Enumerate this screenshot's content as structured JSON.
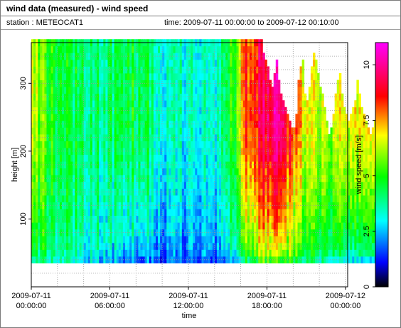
{
  "window": {
    "title": "wind data (measured) - wind speed",
    "station_label": "station : METEOCAT1",
    "time_label": "time: 2009-07-11 00:00:00 to 2009-07-12 00:10:00"
  },
  "chart_data": {
    "type": "heatmap",
    "title": "wind data (measured) - wind speed",
    "xlabel": "time",
    "ylabel": "height [m]",
    "colorbar_label": "wind speed [m/s]",
    "x_ticks": [
      {
        "value": 0,
        "line1": "2009-07-11",
        "line2": "00:00:00"
      },
      {
        "value": 6,
        "line1": "2009-07-11",
        "line2": "06:00:00"
      },
      {
        "value": 12,
        "line1": "2009-07-11",
        "line2": "12:00:00"
      },
      {
        "value": 18,
        "line1": "2009-07-11",
        "line2": "18:00:00"
      },
      {
        "value": 24,
        "line1": "2009-07-12",
        "line2": "00:00:00"
      }
    ],
    "y_ticks": [
      100,
      200,
      300
    ],
    "c_ticks": [
      "0",
      "2.5",
      "5",
      "7.5",
      "10"
    ],
    "xlim": [
      0,
      24.1667
    ],
    "ylim": [
      0,
      360
    ],
    "clim": [
      0,
      11
    ],
    "grid": true,
    "time_step_hours": 0.1667,
    "height_levels_m": [
      40,
      50,
      60,
      70,
      80,
      90,
      100,
      110,
      120,
      130,
      140,
      150,
      160,
      170,
      180,
      190,
      200,
      210,
      220,
      230,
      240,
      250,
      260,
      270,
      280,
      290,
      300,
      310,
      320,
      330,
      340,
      350,
      360
    ],
    "column_top_height_m": [
      360,
      360,
      360,
      360,
      360,
      360,
      360,
      360,
      360,
      360,
      360,
      360,
      360,
      360,
      360,
      360,
      360,
      360,
      360,
      360,
      360,
      360,
      360,
      360,
      360,
      360,
      360,
      360,
      360,
      360,
      360,
      360,
      360,
      360,
      360,
      360,
      360,
      360,
      360,
      360,
      360,
      360,
      360,
      360,
      360,
      360,
      360,
      360,
      360,
      360,
      360,
      360,
      360,
      360,
      360,
      360,
      360,
      360,
      360,
      360,
      360,
      360,
      360,
      360,
      360,
      360,
      360,
      360,
      360,
      360,
      360,
      360,
      360,
      360,
      360,
      360,
      360,
      360,
      360,
      360,
      360,
      360,
      360,
      360,
      360,
      360,
      360,
      360,
      360,
      360,
      360,
      360,
      360,
      360,
      360,
      360,
      360,
      360,
      360,
      360,
      360,
      360,
      360,
      360,
      360,
      360,
      340,
      330,
      320,
      300,
      290,
      310,
      330,
      300,
      280,
      270,
      260,
      250,
      240,
      230,
      230,
      250,
      300,
      320,
      330,
      280,
      270,
      290,
      320,
      340,
      330,
      310,
      290,
      280,
      260,
      240,
      220,
      230,
      250,
      280,
      300,
      310,
      280,
      260,
      250,
      240,
      250,
      260,
      270,
      300,
      280,
      260,
      250,
      240,
      230,
      220,
      230,
      240,
      250
    ],
    "profile_anchors": [
      {
        "t": 0,
        "low": 3.5,
        "high": 6.5
      },
      {
        "t": 1,
        "low": 4.0,
        "high": 5.5
      },
      {
        "t": 2.5,
        "low": 3.5,
        "high": 4.5
      },
      {
        "t": 4,
        "low": 3.0,
        "high": 4.2
      },
      {
        "t": 5.5,
        "low": 2.8,
        "high": 4.0
      },
      {
        "t": 7,
        "low": 2.2,
        "high": 4.6
      },
      {
        "t": 8.5,
        "low": 2.0,
        "high": 4.5
      },
      {
        "t": 10,
        "low": 1.8,
        "high": 3.5
      },
      {
        "t": 11.5,
        "low": 1.5,
        "high": 3.2
      },
      {
        "t": 13,
        "low": 1.4,
        "high": 3.0
      },
      {
        "t": 14.5,
        "low": 1.8,
        "high": 3.6
      },
      {
        "t": 15.5,
        "low": 2.5,
        "high": 5.0
      },
      {
        "t": 16.3,
        "low": 4.0,
        "high": 8.0
      },
      {
        "t": 17,
        "low": 5.0,
        "high": 8.5
      },
      {
        "t": 18,
        "low": 5.5,
        "high": 9.5
      },
      {
        "t": 19,
        "low": 5.0,
        "high": 10.0
      },
      {
        "t": 20,
        "low": 4.5,
        "high": 8.0
      },
      {
        "t": 21,
        "low": 3.8,
        "high": 6.5
      },
      {
        "t": 22.5,
        "low": 3.5,
        "high": 6.0
      },
      {
        "t": 24.2,
        "low": 3.0,
        "high": 7.0
      }
    ]
  }
}
